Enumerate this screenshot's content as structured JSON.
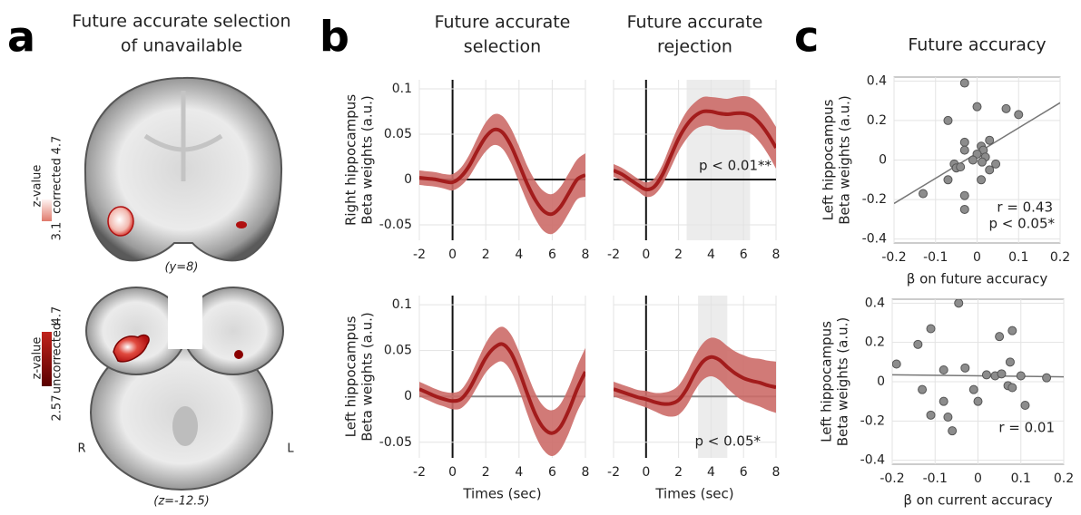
{
  "figure": {
    "a": {
      "letter": "a",
      "title": [
        "Future accurate selection",
        "of  unavailable"
      ],
      "top": {
        "colorbar_label": "z-value",
        "note": "corrected",
        "min": 3.1,
        "max": 4.7,
        "caption": "(y=8)"
      },
      "bottom": {
        "colorbar_label": "z-value",
        "note": "uncorrected",
        "min": 2.57,
        "max": 4.7,
        "right": "R",
        "left": "L",
        "caption": "(z=-12.5)"
      }
    },
    "b": {
      "letter": "b"
    },
    "c": {
      "letter": "c"
    }
  },
  "chart_data": [
    {
      "type": "line",
      "title": [
        "Future accurate",
        "selection"
      ],
      "ylabel": [
        "Right hippocampus",
        "Beta weights (a.u.)"
      ],
      "x": [
        -2,
        -1.5,
        -1,
        -0.5,
        0,
        0.5,
        1,
        1.5,
        2,
        2.5,
        3,
        3.5,
        4,
        4.5,
        5,
        5.5,
        6,
        6.5,
        7,
        7.5,
        8
      ],
      "values": [
        0.002,
        0.001,
        0,
        -0.002,
        -0.003,
        0.003,
        0.015,
        0.032,
        0.047,
        0.055,
        0.052,
        0.038,
        0.017,
        -0.005,
        -0.023,
        -0.035,
        -0.038,
        -0.03,
        -0.015,
        0,
        0.005
      ],
      "error": [
        0.008,
        0.008,
        0.008,
        0.008,
        0.009,
        0.01,
        0.012,
        0.014,
        0.016,
        0.017,
        0.018,
        0.019,
        0.02,
        0.02,
        0.021,
        0.022,
        0.022,
        0.022,
        0.022,
        0.022,
        0.024
      ],
      "color": "#a31c1c",
      "band_color": "#cc6c68",
      "xlim": [
        -2,
        8
      ],
      "ylim": [
        -0.067,
        0.11
      ],
      "xticks": [
        -2,
        0,
        2,
        4,
        6,
        8
      ],
      "yticks": [
        -0.05,
        0,
        0.05,
        0.1
      ],
      "ytick_labels": true,
      "grid": true,
      "zero_line_x_color": "#111",
      "zero_line_y_color": "#111"
    },
    {
      "type": "line",
      "title": [
        "Future accurate",
        "rejection"
      ],
      "annotations": [
        "p < 0.01**"
      ],
      "x": [
        -2,
        -1.5,
        -1,
        -0.5,
        0,
        0.5,
        1,
        1.5,
        2,
        2.5,
        3,
        3.5,
        4,
        4.5,
        5,
        5.5,
        6,
        6.5,
        7,
        7.5,
        8
      ],
      "values": [
        0.01,
        0.006,
        0,
        -0.006,
        -0.011,
        -0.008,
        0.005,
        0.025,
        0.045,
        0.06,
        0.07,
        0.075,
        0.075,
        0.073,
        0.072,
        0.073,
        0.073,
        0.07,
        0.062,
        0.05,
        0.035
      ],
      "error": [
        0.007,
        0.007,
        0.007,
        0.007,
        0.008,
        0.009,
        0.011,
        0.013,
        0.014,
        0.015,
        0.015,
        0.016,
        0.016,
        0.017,
        0.017,
        0.018,
        0.019,
        0.02,
        0.021,
        0.022,
        0.023
      ],
      "color": "#a31c1c",
      "band_color": "#cc6c68",
      "shaded": [
        2.5,
        6.4
      ],
      "shade_color": "#ececec",
      "xlim": [
        -2,
        8
      ],
      "ylim": [
        -0.067,
        0.11
      ],
      "xticks": [
        -2,
        0,
        2,
        4,
        6,
        8
      ],
      "yticks": [
        -0.05,
        0,
        0.05,
        0.1
      ],
      "ytick_labels": false,
      "grid": true,
      "zero_line_x_color": "#111",
      "zero_line_y_color": "#111"
    },
    {
      "type": "line",
      "ylabel": [
        "Left hippocampus",
        "Beta weights (a.u.)"
      ],
      "xlabel": "Times (sec)",
      "x": [
        -2,
        -1.5,
        -1,
        -0.5,
        0,
        0.5,
        1,
        1.5,
        2,
        2.5,
        3,
        3.5,
        4,
        4.5,
        5,
        5.5,
        6,
        6.5,
        7,
        7.5,
        8
      ],
      "values": [
        0.008,
        0.004,
        0,
        -0.003,
        -0.005,
        -0.003,
        0.008,
        0.025,
        0.042,
        0.053,
        0.057,
        0.048,
        0.028,
        0.003,
        -0.02,
        -0.035,
        -0.04,
        -0.033,
        -0.015,
        0.008,
        0.027
      ],
      "error": [
        0.008,
        0.008,
        0.008,
        0.008,
        0.009,
        0.01,
        0.012,
        0.014,
        0.016,
        0.018,
        0.019,
        0.02,
        0.021,
        0.022,
        0.023,
        0.024,
        0.025,
        0.025,
        0.025,
        0.025,
        0.026
      ],
      "color": "#a31c1c",
      "band_color": "#cc6c68",
      "xlim": [
        -2,
        8
      ],
      "ylim": [
        -0.067,
        0.11
      ],
      "xticks": [
        -2,
        0,
        2,
        4,
        6,
        8
      ],
      "yticks": [
        -0.05,
        0,
        0.05,
        0.1
      ],
      "ytick_labels": true,
      "grid": true,
      "zero_line_x_color": "#111",
      "zero_line_y_color": "#888"
    },
    {
      "type": "line",
      "xlabel": "Times (sec)",
      "annotations": [
        "p < 0.05*"
      ],
      "x": [
        -2,
        -1.5,
        -1,
        -0.5,
        0,
        0.5,
        1,
        1.5,
        2,
        2.5,
        3,
        3.5,
        4,
        4.5,
        5,
        5.5,
        6,
        6.5,
        7,
        7.5,
        8
      ],
      "values": [
        0.008,
        0.005,
        0.002,
        -0.001,
        -0.003,
        -0.006,
        -0.008,
        -0.008,
        -0.004,
        0.008,
        0.025,
        0.038,
        0.043,
        0.04,
        0.032,
        0.025,
        0.02,
        0.017,
        0.015,
        0.012,
        0.01
      ],
      "error": [
        0.008,
        0.008,
        0.008,
        0.008,
        0.009,
        0.01,
        0.012,
        0.014,
        0.016,
        0.018,
        0.019,
        0.02,
        0.021,
        0.022,
        0.023,
        0.024,
        0.025,
        0.025,
        0.026,
        0.027,
        0.028
      ],
      "color": "#a31c1c",
      "band_color": "#cc6c68",
      "shaded": [
        3.2,
        5
      ],
      "shade_color": "#ececec",
      "xlim": [
        -2,
        8
      ],
      "ylim": [
        -0.067,
        0.11
      ],
      "xticks": [
        -2,
        0,
        2,
        4,
        6,
        8
      ],
      "yticks": [
        -0.05,
        0,
        0.05,
        0.1
      ],
      "ytick_labels": false,
      "grid": true,
      "zero_line_x_color": "#111",
      "zero_line_y_color": "#888"
    },
    {
      "type": "scatter",
      "title": [
        "Future accuracy"
      ],
      "ylabel": [
        "Left hippocampus",
        "Beta weights (a.u.)"
      ],
      "xlabel": "β on future accuracy",
      "annotations": [
        "r = 0.43",
        "p < 0.05*"
      ],
      "x": [
        -0.07,
        -0.03,
        0,
        0.07,
        0.1,
        -0.03,
        0.03,
        0.01,
        -0.03,
        0.015,
        0,
        0.02,
        -0.01,
        0.012,
        -0.055,
        -0.05,
        -0.04,
        0.045,
        0.03,
        -0.07,
        0.01,
        -0.03,
        -0.13,
        -0.03
      ],
      "y": [
        0.2,
        0.39,
        0.27,
        0.26,
        0.23,
        0.09,
        0.1,
        0.07,
        0.05,
        0.05,
        0.03,
        0.015,
        0,
        -0.01,
        -0.02,
        -0.04,
        -0.035,
        -0.02,
        -0.05,
        -0.1,
        -0.1,
        -0.18,
        -0.17,
        -0.25
      ],
      "fit_x": [
        -0.2,
        0.2
      ],
      "fit_y": [
        -0.22,
        0.29
      ],
      "color": "#8c8c8c",
      "xlim": [
        -0.2,
        0.2
      ],
      "ylim": [
        -0.42,
        0.42
      ],
      "xticks": [
        -0.2,
        -0.1,
        0,
        0.1,
        0.2
      ],
      "yticks": [
        -0.4,
        -0.2,
        0,
        0.2,
        0.4
      ],
      "grid": true
    },
    {
      "type": "scatter",
      "ylabel": [
        "Left hippocampus",
        "Beta weights (a.u.)"
      ],
      "xlabel": "β on current accuracy",
      "annotations": [
        "r = 0.01"
      ],
      "x": [
        -0.19,
        -0.14,
        -0.11,
        -0.045,
        0.05,
        0.08,
        -0.08,
        -0.03,
        0.04,
        0.055,
        0.075,
        0.1,
        0.16,
        -0.13,
        0.02,
        -0.01,
        0.07,
        0.08,
        0.11,
        0,
        -0.11,
        -0.08,
        -0.07,
        -0.06
      ],
      "y": [
        0.09,
        0.19,
        0.27,
        0.4,
        0.23,
        0.26,
        0.06,
        0.07,
        0.03,
        0.04,
        0.1,
        0.03,
        0.02,
        -0.04,
        0.035,
        -0.04,
        -0.02,
        -0.03,
        -0.12,
        -0.1,
        -0.17,
        -0.1,
        -0.18,
        -0.25
      ],
      "fit_x": [
        -0.2,
        0.2
      ],
      "fit_y": [
        0.035,
        0.025
      ],
      "color": "#8c8c8c",
      "xlim": [
        -0.2,
        0.2
      ],
      "ylim": [
        -0.42,
        0.42
      ],
      "xticks": [
        -0.2,
        -0.1,
        0,
        0.1,
        0.2
      ],
      "yticks": [
        -0.4,
        -0.2,
        0,
        0.2,
        0.4
      ],
      "grid": true
    }
  ]
}
